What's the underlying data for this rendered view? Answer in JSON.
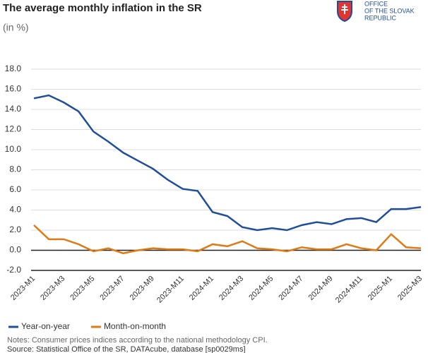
{
  "chart_data": {
    "type": "line",
    "title": "The average monthly inflation in the SR",
    "subtitle": "(in %)",
    "logo_lines": [
      "OFFICE",
      "OF THE SLOVAK",
      "REPUBLIC"
    ],
    "categories": [
      "2023-M1",
      null,
      "2023-M3",
      null,
      "2023-M5",
      null,
      "2023-M7",
      null,
      "2023-M9",
      null,
      "2023-M11",
      null,
      "2024-M1",
      null,
      "2024-M3",
      null,
      "2024-M5",
      null,
      "2024-M7",
      null,
      "2024-M9",
      null,
      "2024-M11",
      null,
      "2025-M1",
      null,
      "2025-M3"
    ],
    "series": [
      {
        "name": "Year-on-year",
        "color": "#1f4e9e",
        "values": [
          15.1,
          15.4,
          14.7,
          13.8,
          11.8,
          10.8,
          9.7,
          8.9,
          8.1,
          7.0,
          6.1,
          5.9,
          3.8,
          3.4,
          2.3,
          2.0,
          2.2,
          2.0,
          2.5,
          2.8,
          2.6,
          3.1,
          3.2,
          2.8,
          4.1,
          4.1,
          4.3
        ]
      },
      {
        "name": "Month-on-month",
        "color": "#e07b14",
        "values": [
          2.5,
          1.1,
          1.1,
          0.6,
          -0.1,
          0.2,
          -0.3,
          0.0,
          0.2,
          0.1,
          0.1,
          -0.1,
          0.6,
          0.4,
          0.9,
          0.2,
          0.1,
          -0.1,
          0.3,
          0.1,
          0.1,
          0.6,
          0.2,
          0.0,
          1.6,
          0.3,
          0.2
        ]
      }
    ],
    "ylim": [
      -2,
      18
    ],
    "yticks": [
      {
        "value": -2,
        "label": "-2.0"
      },
      {
        "value": 0,
        "label": "0.0"
      },
      {
        "value": 2,
        "label": "2.0"
      },
      {
        "value": 4,
        "label": "4.0"
      },
      {
        "value": 6,
        "label": "6.0"
      },
      {
        "value": 8,
        "label": "8.0"
      },
      {
        "value": 10,
        "label": "10.0"
      },
      {
        "value": 12,
        "label": "12.0"
      },
      {
        "value": 14,
        "label": "14.0"
      },
      {
        "value": 16,
        "label": "16.0"
      },
      {
        "value": 18,
        "label": "18.0"
      }
    ],
    "grid": true,
    "legend": "bottom",
    "notes": "Notes: Consumer prices indices according to the national methodology CPI.",
    "source": "Source: Statistical Office of the SR, DATAcube, database [sp0029ms]"
  }
}
